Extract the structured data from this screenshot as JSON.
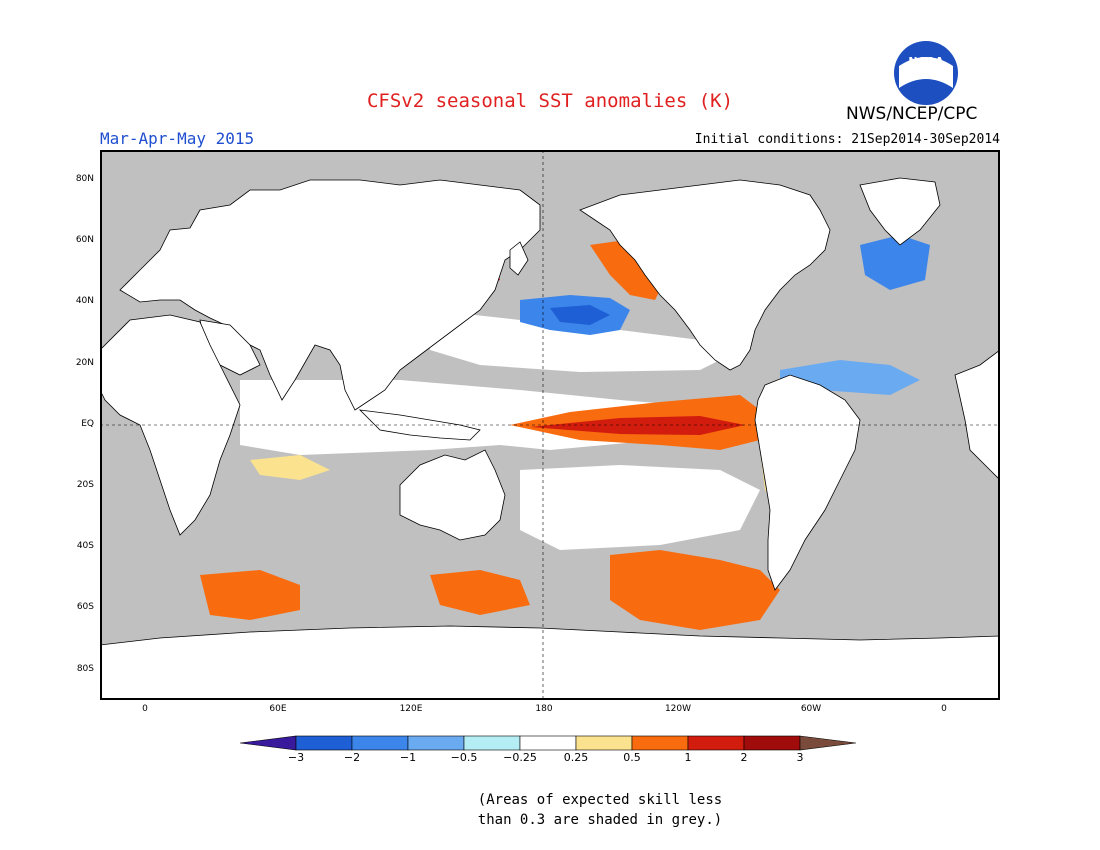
{
  "header": {
    "title": "CFSv2 seasonal SST anomalies (K)",
    "agency": "NWS/NCEP/CPC",
    "logo_text": "NOAA",
    "period": "Mar-Apr-May 2015",
    "initial_conditions": "Initial conditions: 21Sep2014-30Sep2014"
  },
  "map": {
    "lat_labels": [
      "80N",
      "60N",
      "40N",
      "20N",
      "EQ",
      "20S",
      "40S",
      "60S",
      "80S"
    ],
    "lon_labels": [
      "0",
      "60E",
      "120E",
      "180",
      "120W",
      "60W",
      "0"
    ],
    "colors": {
      "land": "#ffffff",
      "grey_low_skill": "#c0c0c0",
      "frame": "#000000"
    }
  },
  "colorbar": {
    "tick_labels": [
      "-3",
      "-2",
      "-1",
      "-0.5",
      "-0.25",
      "0.25",
      "0.5",
      "1",
      "2",
      "3"
    ],
    "colors": [
      "#3a1a9c",
      "#1f5fd6",
      "#3c85ea",
      "#6aaaf0",
      "#b4eef4",
      "#ffffff",
      "#fbe28e",
      "#f96b0f",
      "#d21c0e",
      "#a00c0c",
      "#7a4b3a"
    ]
  },
  "notes": {
    "line1": "(Areas of expected skill less",
    "line2": "than 0.3 are shaded in grey.)"
  }
}
